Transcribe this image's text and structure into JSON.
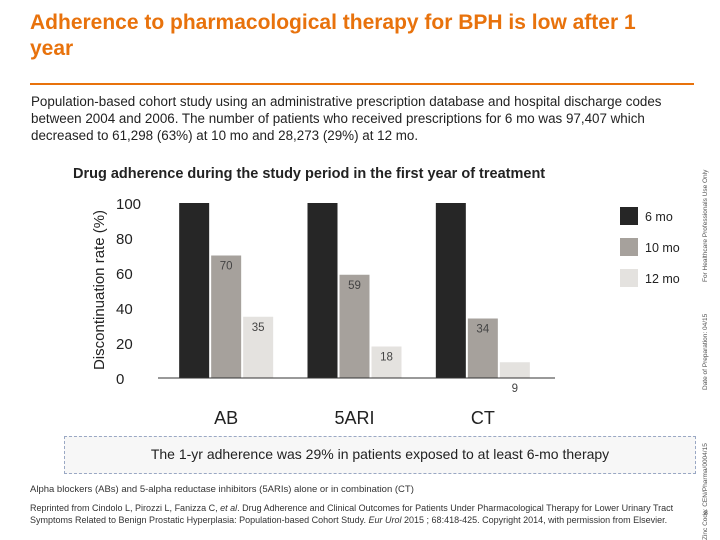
{
  "slide": {
    "title": "Adherence to pharmacological therapy for BPH is low after 1 year",
    "intro": "Population-based cohort study using an administrative prescription database and hospital discharge codes between 2004 and 2006. The number of patients who received prescriptions for 6 mo was 97,407 which decreased to 61,298 (63%) at 10 mo and 28,273 (29%) at 12 mo.",
    "callout": "The 1-yr adherence was 29% in patients exposed to at least 6-mo therapy",
    "footnote": "Alpha blockers (ABs) and 5-alpha reductase inhibitors (5ARIs) alone or in combination (CT)",
    "reference": {
      "part1": "Reprinted from Cindolo L, Pirozzi L, Fanizza C, ",
      "etal": "et al",
      "part2": ". Drug Adherence and Clinical Outcomes for Patients Under Pharmacological Therapy for Lower Urinary Tract Symptoms Related to Benign Prostatic Hyperplasia: Population-based Cohort Study. ",
      "journal": "Eur Urol",
      "part3": " 2015 ; 68:418-425. Copyright 2014, with permission from Elsevier."
    },
    "page_number": "8",
    "side_text": {
      "code": "Zinc Code: CEN/Pharma/0004/15",
      "date": "Date of Preparation: 04/15",
      "audience": "For Healthcare Professionals Use Only"
    }
  },
  "colors": {
    "accent": "#e8720c",
    "series_6mo": "#262626",
    "series_10mo": "#a6a19c",
    "series_12mo": "#e4e2df"
  },
  "chart_data": {
    "type": "bar",
    "title": "Drug adherence during the study period in the first year of treatment",
    "ylabel": "Discontinuation rate (%)",
    "xlabel": "",
    "categories": [
      "AB",
      "5ARI",
      "CT"
    ],
    "ylim": [
      0,
      100
    ],
    "yticks": [
      "0",
      "20",
      "40",
      "60",
      "80",
      "100"
    ],
    "legend_position": "top-right",
    "grid": false,
    "series": [
      {
        "name": "6 mo",
        "values": [
          100,
          100,
          100
        ],
        "labels": [
          "",
          "",
          ""
        ]
      },
      {
        "name": "10 mo",
        "values": [
          70,
          59,
          34
        ],
        "labels": [
          "70",
          "59",
          "34"
        ]
      },
      {
        "name": "12 mo",
        "values": [
          35,
          18,
          9
        ],
        "labels": [
          "35",
          "18",
          "9"
        ]
      }
    ]
  }
}
